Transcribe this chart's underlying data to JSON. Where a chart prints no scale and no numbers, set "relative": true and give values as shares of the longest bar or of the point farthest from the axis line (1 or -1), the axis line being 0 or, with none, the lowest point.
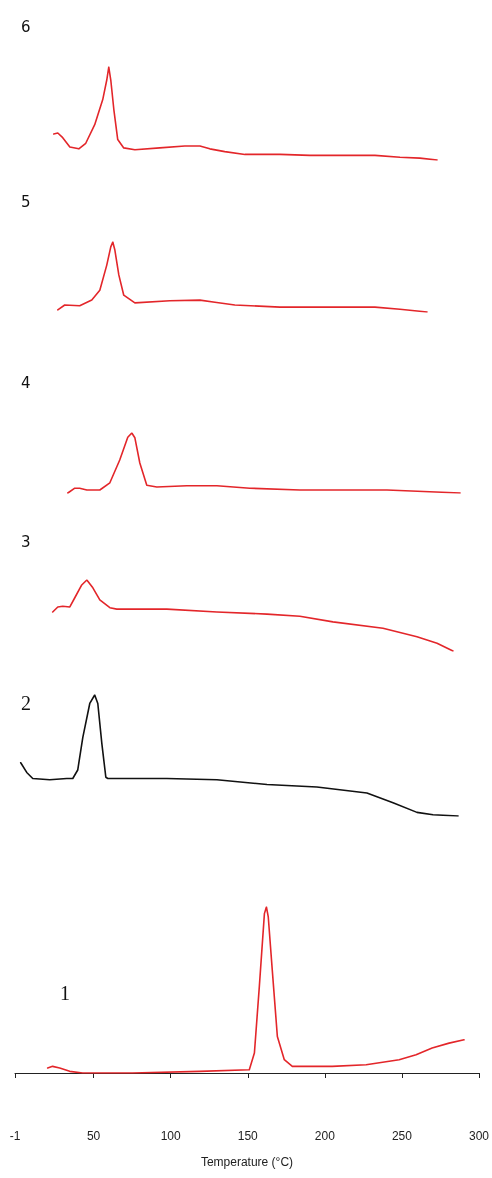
{
  "chart_data": [
    {
      "type": "line",
      "title": "6",
      "relative": true,
      "tick_labels": false,
      "xlim": [
        -1,
        300
      ],
      "series": [
        {
          "color": "#e3262a",
          "x": [
            24.1,
            26.7,
            29.9,
            34.5,
            40.3,
            44.8,
            50.6,
            55.8,
            58.4,
            59.7,
            61.0,
            63.0,
            65.5,
            69.4,
            76.6,
            92.7,
            108.9,
            118.7,
            125.1,
            134.8,
            147.8,
            170.5,
            189.9,
            215.8,
            232.0,
            248.2,
            261.1,
            272.2
          ],
          "values": [
            0.28,
            0.29,
            0.24,
            0.14,
            0.12,
            0.18,
            0.38,
            0.65,
            0.86,
            1,
            0.86,
            0.54,
            0.22,
            0.13,
            0.11,
            0.13,
            0.15,
            0.15,
            0.12,
            0.09,
            0.06,
            0.06,
            0.05,
            0.05,
            0.05,
            0.03,
            0.02,
            0
          ]
        }
      ]
    },
    {
      "type": "line",
      "title": "5",
      "relative": true,
      "tick_labels": false,
      "xlim": [
        -1,
        300
      ],
      "series": [
        {
          "color": "#e3262a",
          "x": [
            26.7,
            31.2,
            40.9,
            48.7,
            53.9,
            58.4,
            61.0,
            62.3,
            63.6,
            66.2,
            69.4,
            76.6,
            99.2,
            118.7,
            128.4,
            141.3,
            170.5,
            202.9,
            232.0,
            248.2,
            265.7
          ],
          "values": [
            0.03,
            0.1,
            0.09,
            0.17,
            0.31,
            0.67,
            0.93,
            1,
            0.89,
            0.53,
            0.24,
            0.13,
            0.16,
            0.17,
            0.14,
            0.1,
            0.07,
            0.07,
            0.07,
            0.04,
            0
          ]
        }
      ]
    },
    {
      "type": "line",
      "title": "4",
      "relative": true,
      "tick_labels": false,
      "xlim": [
        -1,
        300
      ],
      "series": [
        {
          "color": "#e3262a",
          "x": [
            33.2,
            37.7,
            40.9,
            45.5,
            53.9,
            60.4,
            66.8,
            72.0,
            74.6,
            76.6,
            79.8,
            84.3,
            90.8,
            110.2,
            129.7,
            151.0,
            183.4,
            239.8,
            287.1
          ],
          "values": [
            0,
            0.08,
            0.08,
            0.05,
            0.05,
            0.17,
            0.55,
            0.93,
            1,
            0.92,
            0.5,
            0.13,
            0.1,
            0.12,
            0.12,
            0.08,
            0.05,
            0.05,
            0
          ]
        }
      ]
    },
    {
      "type": "line",
      "title": "3",
      "relative": true,
      "tick_labels": false,
      "xlim": [
        -1,
        300
      ],
      "series": [
        {
          "color": "#e3262a",
          "x": [
            23.4,
            26.7,
            29.9,
            34.5,
            37.7,
            42.2,
            45.5,
            49.4,
            53.9,
            60.4,
            64.9,
            97.3,
            129.7,
            162.1,
            183.4,
            204.8,
            237.2,
            259.2,
            272.2,
            282.5
          ],
          "values": [
            0.55,
            0.62,
            0.63,
            0.62,
            0.75,
            0.93,
            1,
            0.89,
            0.72,
            0.61,
            0.59,
            0.59,
            0.55,
            0.52,
            0.49,
            0.41,
            0.32,
            0.2,
            0.11,
            0
          ]
        }
      ]
    },
    {
      "type": "line",
      "title": "2",
      "relative": true,
      "tick_labels": false,
      "xlim": [
        -1,
        300
      ],
      "series": [
        {
          "color": "#111111",
          "x": [
            2.7,
            6.6,
            10.5,
            21.5,
            32.5,
            36.4,
            39.6,
            42.9,
            47.4,
            50.6,
            52.6,
            55.2,
            57.8,
            59.1,
            97.3,
            129.7,
            162.1,
            194.4,
            226.8,
            243.7,
            259.2,
            269.6,
            285.8
          ],
          "values": [
            0.44,
            0.36,
            0.31,
            0.3,
            0.31,
            0.31,
            0.38,
            0.65,
            0.93,
            1,
            0.93,
            0.6,
            0.32,
            0.31,
            0.31,
            0.3,
            0.26,
            0.24,
            0.19,
            0.11,
            0.03,
            0.01,
            0
          ]
        }
      ]
    },
    {
      "type": "line",
      "title": "1",
      "relative": true,
      "xlabel": "Temperature (°C)",
      "xlim": [
        -1,
        300
      ],
      "xticks": [
        -1,
        50,
        100,
        150,
        200,
        250,
        300
      ],
      "series": [
        {
          "color": "#e3262a",
          "x": [
            20.2,
            23.4,
            28.0,
            34.5,
            42.9,
            75.3,
            118.7,
            151.0,
            154.3,
            157.5,
            160.8,
            162.1,
            163.3,
            165.9,
            169.2,
            173.7,
            178.9,
            204.8,
            226.8,
            248.2,
            259.2,
            269.6,
            280.6,
            290.3
          ],
          "values": [
            0.03,
            0.04,
            0.03,
            0.01,
            0,
            0,
            0.01,
            0.02,
            0.12,
            0.52,
            0.96,
            1,
            0.94,
            0.62,
            0.22,
            0.08,
            0.04,
            0.04,
            0.05,
            0.08,
            0.11,
            0.15,
            0.18,
            0.2
          ]
        }
      ]
    }
  ]
}
